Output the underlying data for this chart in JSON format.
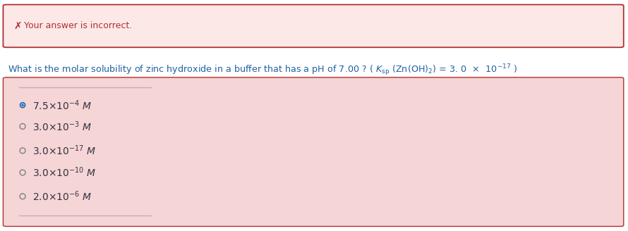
{
  "error_banner_bg": "#fde8e8",
  "error_banner_border": "#b03030",
  "error_text": "  Your answer is incorrect.",
  "error_icon": "✗",
  "answer_box_bg": "#f5d5d5",
  "answer_box_border": "#b03030",
  "options": [
    {
      "main": "7.5  ×  10",
      "exp": "-4",
      "unit": " ×M",
      "selected": true
    },
    {
      "main": "3.0  ×  10",
      "exp": "-3",
      "unit": " ×M",
      "selected": false
    },
    {
      "main": "3.0  ×  10",
      "exp": "-17",
      "unit": " ×M",
      "selected": false
    },
    {
      "main": "3.0  ×  10",
      "exp": "-10",
      "unit": " ×M",
      "selected": false
    },
    {
      "main": "2.0  ×  10",
      "exp": "-6",
      "unit": " ×M",
      "selected": false
    }
  ],
  "radio_selected": "#2060b0",
  "radio_unselected": "#888888",
  "text_dark": "#333344",
  "text_blue": "#2060a0",
  "text_red": "#b03030",
  "bg_white": "#ffffff",
  "fig_width": 8.9,
  "fig_height": 3.28,
  "dpi": 100
}
